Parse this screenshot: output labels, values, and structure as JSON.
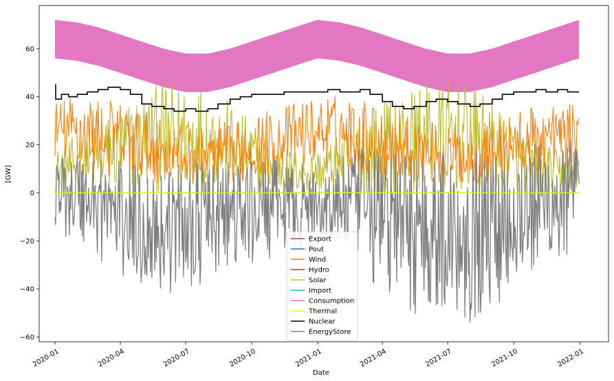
{
  "chart_data": {
    "type": "line",
    "title": "",
    "xlabel": "Date",
    "ylabel": "[GW]",
    "x_range": [
      "2019-12-10",
      "2022-02-10"
    ],
    "ylim": [
      -62,
      78
    ],
    "x_ticks": [
      "2020-01",
      "2020-04",
      "2020-07",
      "2020-10",
      "2021-01",
      "2021-04",
      "2021-07",
      "2021-10",
      "2022-01"
    ],
    "y_ticks": [
      -60,
      -40,
      -20,
      0,
      20,
      40,
      60
    ],
    "grid": false,
    "legend_position": "bottom-center",
    "series": [
      {
        "name": "Export",
        "color": "#8c564b",
        "points": [
          [
            "2020-01-01",
            0
          ],
          [
            "2021-12-31",
            0
          ]
        ]
      },
      {
        "name": "Pout",
        "color": "#1f77b4",
        "points": [
          [
            "2020-01-01",
            0
          ],
          [
            "2021-12-31",
            0
          ]
        ]
      },
      {
        "name": "Wind",
        "color": "#ff7f0e",
        "band": [
          [
            "2020-01-01",
            15,
            38
          ],
          [
            "2020-02-01",
            10,
            42
          ],
          [
            "2020-03-01",
            8,
            40
          ],
          [
            "2020-04-01",
            5,
            38
          ],
          [
            "2020-05-01",
            5,
            35
          ],
          [
            "2020-06-01",
            4,
            30
          ],
          [
            "2020-07-01",
            3,
            28
          ],
          [
            "2020-08-01",
            3,
            27
          ],
          [
            "2020-09-01",
            4,
            28
          ],
          [
            "2020-10-01",
            6,
            33
          ],
          [
            "2020-11-01",
            8,
            35
          ],
          [
            "2020-12-01",
            10,
            38
          ],
          [
            "2021-01-01",
            12,
            40
          ],
          [
            "2021-02-01",
            10,
            41
          ],
          [
            "2021-03-01",
            8,
            40
          ],
          [
            "2021-04-01",
            6,
            36
          ],
          [
            "2021-05-01",
            5,
            33
          ],
          [
            "2021-06-01",
            4,
            30
          ],
          [
            "2021-07-01",
            3,
            28
          ],
          [
            "2021-08-01",
            3,
            28
          ],
          [
            "2021-09-01",
            4,
            30
          ],
          [
            "2021-10-01",
            6,
            34
          ],
          [
            "2021-11-01",
            8,
            36
          ],
          [
            "2021-12-01",
            10,
            38
          ],
          [
            "2021-12-31",
            12,
            36
          ]
        ]
      },
      {
        "name": "Hydro",
        "color": "#d62728",
        "points": [
          [
            "2020-01-01",
            0
          ],
          [
            "2021-12-31",
            0
          ]
        ]
      },
      {
        "name": "Solar",
        "color": "#bcbd22",
        "band": [
          [
            "2020-01-01",
            0,
            18
          ],
          [
            "2020-02-01",
            0,
            24
          ],
          [
            "2020-03-01",
            0,
            30
          ],
          [
            "2020-04-01",
            0,
            36
          ],
          [
            "2020-05-01",
            0,
            42
          ],
          [
            "2020-06-01",
            0,
            46
          ],
          [
            "2020-07-01",
            0,
            47
          ],
          [
            "2020-08-01",
            0,
            45
          ],
          [
            "2020-09-01",
            0,
            38
          ],
          [
            "2020-10-01",
            0,
            30
          ],
          [
            "2020-11-01",
            0,
            22
          ],
          [
            "2020-12-01",
            0,
            18
          ],
          [
            "2021-01-01",
            0,
            18
          ],
          [
            "2021-02-01",
            0,
            24
          ],
          [
            "2021-03-01",
            0,
            32
          ],
          [
            "2021-04-01",
            0,
            38
          ],
          [
            "2021-05-01",
            0,
            43
          ],
          [
            "2021-06-01",
            0,
            46
          ],
          [
            "2021-07-01",
            0,
            47
          ],
          [
            "2021-08-01",
            0,
            45
          ],
          [
            "2021-09-01",
            0,
            38
          ],
          [
            "2021-10-01",
            0,
            30
          ],
          [
            "2021-11-01",
            0,
            22
          ],
          [
            "2021-12-01",
            0,
            18
          ],
          [
            "2021-12-31",
            0,
            16
          ]
        ]
      },
      {
        "name": "Import",
        "color": "#17becf",
        "points": [
          [
            "2020-01-01",
            0
          ],
          [
            "2021-12-31",
            0
          ]
        ]
      },
      {
        "name": "Consumption",
        "color": "#e377c2",
        "band": [
          [
            "2020-01-01",
            56,
            72
          ],
          [
            "2020-02-01",
            55,
            71
          ],
          [
            "2020-03-01",
            53,
            69
          ],
          [
            "2020-04-01",
            50,
            66
          ],
          [
            "2020-05-01",
            47,
            63
          ],
          [
            "2020-06-01",
            44,
            60
          ],
          [
            "2020-07-01",
            42,
            58
          ],
          [
            "2020-08-01",
            42,
            58
          ],
          [
            "2020-09-01",
            44,
            60
          ],
          [
            "2020-10-01",
            47,
            63
          ],
          [
            "2020-11-01",
            50,
            66
          ],
          [
            "2020-12-01",
            53,
            69
          ],
          [
            "2021-01-01",
            56,
            72
          ],
          [
            "2021-02-01",
            55,
            71
          ],
          [
            "2021-03-01",
            53,
            69
          ],
          [
            "2021-04-01",
            50,
            66
          ],
          [
            "2021-05-01",
            47,
            63
          ],
          [
            "2021-06-01",
            44,
            60
          ],
          [
            "2021-07-01",
            42,
            58
          ],
          [
            "2021-08-01",
            42,
            58
          ],
          [
            "2021-09-01",
            44,
            60
          ],
          [
            "2021-10-01",
            47,
            63
          ],
          [
            "2021-11-01",
            50,
            66
          ],
          [
            "2021-12-01",
            53,
            69
          ],
          [
            "2021-12-31",
            56,
            72
          ]
        ]
      },
      {
        "name": "Thermal",
        "color": "#ffff00",
        "points": [
          [
            "2020-01-01",
            0
          ],
          [
            "2021-12-31",
            0
          ]
        ]
      },
      {
        "name": "Nuclear",
        "color": "#000000",
        "points": [
          [
            "2020-01-01",
            45
          ],
          [
            "2020-01-02",
            39
          ],
          [
            "2020-01-10",
            41
          ],
          [
            "2020-01-20",
            40
          ],
          [
            "2020-02-01",
            41
          ],
          [
            "2020-02-15",
            42
          ],
          [
            "2020-03-01",
            43
          ],
          [
            "2020-03-15",
            44
          ],
          [
            "2020-04-01",
            43
          ],
          [
            "2020-04-15",
            41
          ],
          [
            "2020-05-01",
            37
          ],
          [
            "2020-05-15",
            36
          ],
          [
            "2020-06-01",
            35
          ],
          [
            "2020-06-15",
            34
          ],
          [
            "2020-07-01",
            35
          ],
          [
            "2020-07-15",
            34
          ],
          [
            "2020-08-01",
            35
          ],
          [
            "2020-08-15",
            37
          ],
          [
            "2020-09-01",
            39
          ],
          [
            "2020-09-15",
            40
          ],
          [
            "2020-10-01",
            41
          ],
          [
            "2020-10-15",
            41
          ],
          [
            "2020-11-01",
            41
          ],
          [
            "2020-11-15",
            42
          ],
          [
            "2020-12-01",
            42
          ],
          [
            "2020-12-15",
            42
          ],
          [
            "2021-01-01",
            42
          ],
          [
            "2021-01-15",
            43
          ],
          [
            "2021-02-01",
            42
          ],
          [
            "2021-02-15",
            42
          ],
          [
            "2021-03-01",
            43
          ],
          [
            "2021-03-15",
            41
          ],
          [
            "2021-04-01",
            38
          ],
          [
            "2021-04-15",
            36
          ],
          [
            "2021-05-01",
            35
          ],
          [
            "2021-05-15",
            36
          ],
          [
            "2021-06-01",
            38
          ],
          [
            "2021-06-15",
            39
          ],
          [
            "2021-07-01",
            38
          ],
          [
            "2021-07-15",
            37
          ],
          [
            "2021-08-01",
            36
          ],
          [
            "2021-08-15",
            37
          ],
          [
            "2021-09-01",
            39
          ],
          [
            "2021-09-15",
            41
          ],
          [
            "2021-10-01",
            42
          ],
          [
            "2021-10-15",
            42
          ],
          [
            "2021-11-01",
            43
          ],
          [
            "2021-11-15",
            42
          ],
          [
            "2021-12-01",
            43
          ],
          [
            "2021-12-15",
            42
          ],
          [
            "2021-12-31",
            42
          ]
        ]
      },
      {
        "name": "EnergyStore",
        "color": "#7f7f7f",
        "band": [
          [
            "2020-01-01",
            -15,
            15
          ],
          [
            "2020-02-01",
            -22,
            18
          ],
          [
            "2020-03-01",
            -28,
            16
          ],
          [
            "2020-04-01",
            -36,
            14
          ],
          [
            "2020-05-01",
            -42,
            12
          ],
          [
            "2020-06-01",
            -44,
            11
          ],
          [
            "2020-07-01",
            -40,
            12
          ],
          [
            "2020-08-01",
            -38,
            13
          ],
          [
            "2020-09-01",
            -36,
            14
          ],
          [
            "2020-10-01",
            -32,
            13
          ],
          [
            "2020-11-01",
            -28,
            14
          ],
          [
            "2020-12-01",
            -25,
            12
          ],
          [
            "2021-01-01",
            -22,
            8
          ],
          [
            "2021-02-01",
            -26,
            15
          ],
          [
            "2021-03-01",
            -30,
            18
          ],
          [
            "2021-04-01",
            -45,
            20
          ],
          [
            "2021-05-01",
            -50,
            19
          ],
          [
            "2021-06-01",
            -52,
            18
          ],
          [
            "2021-07-01",
            -55,
            17
          ],
          [
            "2021-08-01",
            -54,
            18
          ],
          [
            "2021-09-01",
            -50,
            18
          ],
          [
            "2021-10-01",
            -42,
            20
          ],
          [
            "2021-11-01",
            -38,
            22
          ],
          [
            "2021-12-01",
            -35,
            24
          ],
          [
            "2021-12-31",
            -30,
            22
          ]
        ]
      }
    ]
  }
}
